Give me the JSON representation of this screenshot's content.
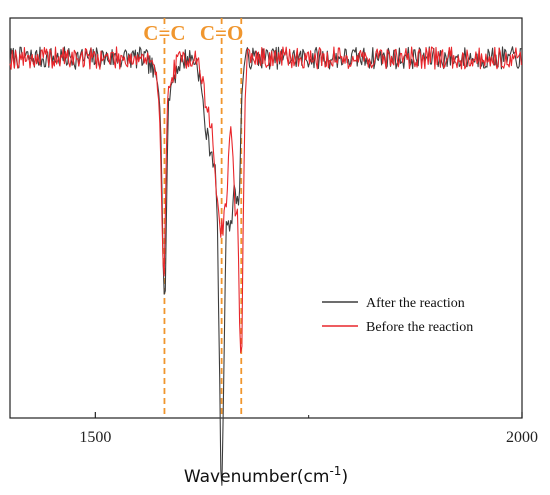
{
  "chart_data": {
    "type": "line",
    "xlabel": "Wavenumber(cm",
    "xlabel_sup": "-1",
    "xlabel_tail": ")",
    "xlim": [
      1400,
      2000
    ],
    "xticks": [
      1500,
      2000
    ],
    "xtick_labels": [
      "1500",
      "2000"
    ],
    "minor_xticks": [
      1750
    ],
    "ylim": [
      0,
      1
    ],
    "yaxis_ticks_shown": false,
    "grid": false,
    "legend_position": "right, lower middle",
    "series": [
      {
        "name": "After the reaction",
        "color": "#3d3d3d",
        "baseline": 0.9,
        "noise": 0.028,
        "seed": 7,
        "dips": [
          {
            "center": 1581,
            "width": 2.2,
            "depth": 0.51
          },
          {
            "center": 1581,
            "width": 9,
            "depth": 0.1
          },
          {
            "center": 1648,
            "width": 2.6,
            "depth": 0.74
          },
          {
            "center": 1646,
            "width": 9,
            "depth": 0.32
          },
          {
            "center": 1668,
            "width": 2.4,
            "depth": 0.26
          },
          {
            "center": 1660,
            "width": 5,
            "depth": 0.3
          },
          {
            "center": 1630,
            "width": 5,
            "depth": 0.12
          }
        ]
      },
      {
        "name": "Before the reaction",
        "color": "#e8262b",
        "baseline": 0.9,
        "noise": 0.028,
        "seed": 19,
        "dips": [
          {
            "center": 1580,
            "width": 2.2,
            "depth": 0.44
          },
          {
            "center": 1580,
            "width": 8,
            "depth": 0.1
          },
          {
            "center": 1648,
            "width": 8,
            "depth": 0.43
          },
          {
            "center": 1671,
            "width": 2.2,
            "depth": 0.68
          },
          {
            "center": 1664,
            "width": 4,
            "depth": 0.35
          },
          {
            "center": 1630,
            "width": 5,
            "depth": 0.08
          },
          {
            "center": 1660,
            "width": 2.5,
            "depth": -0.14
          }
        ]
      }
    ],
    "annotations": [
      {
        "label": "C=C",
        "x": 1581,
        "color": "#f0962e"
      },
      {
        "label": "C=O",
        "x": 1648,
        "color": "#f0962e"
      },
      {
        "label": "",
        "x": 1671,
        "color": "#f0962e"
      }
    ]
  }
}
